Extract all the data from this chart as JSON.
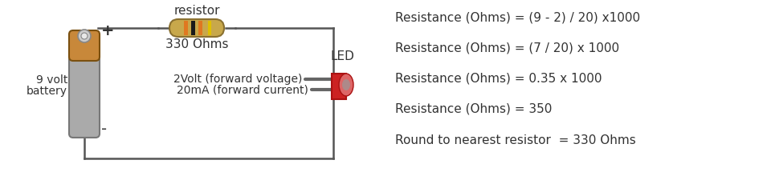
{
  "bg_color": "#ffffff",
  "line_color": "#555555",
  "text_color": "#333333",
  "resistor_label": "resistor",
  "resistor_ohms": "330 Ohms",
  "battery_label1": "9 volt",
  "battery_label2": "battery",
  "plus_label": "+",
  "minus_label": "-",
  "led_label": "LED",
  "forward_text1": "2Volt (forward voltage)",
  "forward_text2": "20mA (forward current)",
  "eq1": "Resistance (Ohms) = (9 - 2) / 20) x1000",
  "eq2": "Resistance (Ohms) = (7 / 20) x 1000",
  "eq3": "Resistance (Ohms) = 0.35 x 1000",
  "eq4": "Resistance (Ohms) = 350",
  "eq5": "Round to nearest resistor  = 330 Ohms",
  "resistor_body_color": "#c8a84b",
  "resistor_stripe1": "#e07820",
  "resistor_stripe2": "#1a1a1a",
  "resistor_stripe3": "#e0c000",
  "resistor_edge_color": "#8a7030",
  "battery_body_color": "#aaaaaa",
  "battery_top_color": "#c8883a",
  "battery_edge_color": "#777777",
  "battery_cap_edge": "#7a5010",
  "nub_color": "#cccccc",
  "nub_edge": "#888888",
  "led_red": "#cc2222",
  "led_red_light": "#dd6666",
  "led_body_dark": "#aa1111",
  "led_lens_gray": "#888888",
  "wire_color": "#666666"
}
